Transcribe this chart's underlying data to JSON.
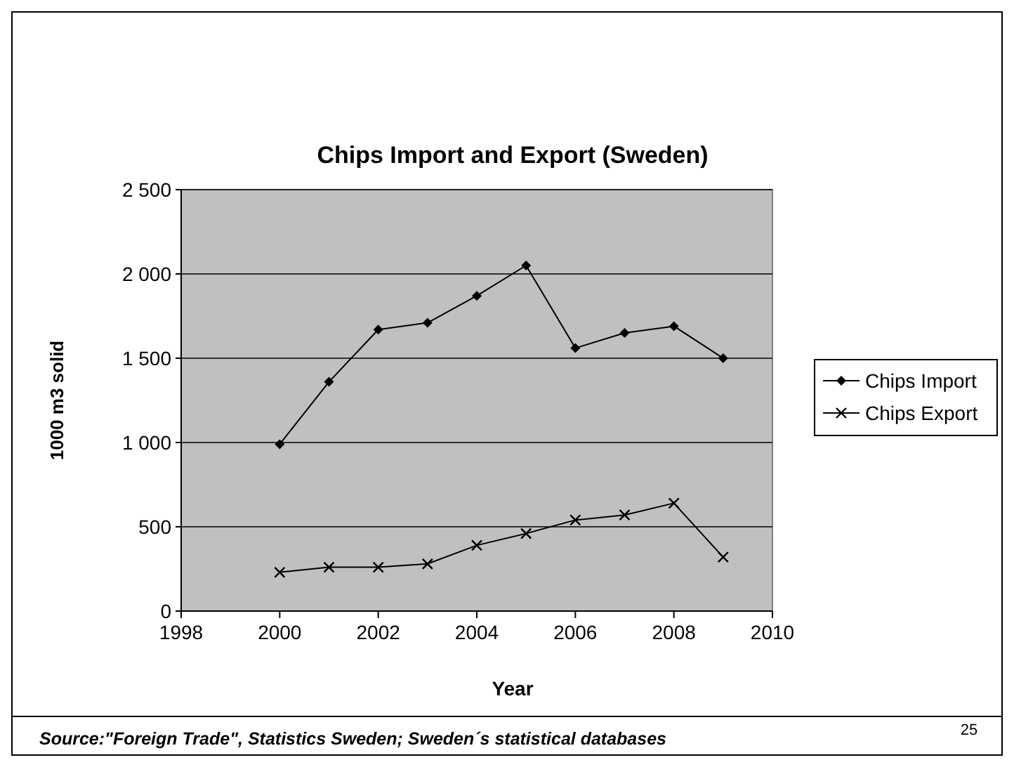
{
  "chart_data": {
    "type": "line",
    "title": "Chips Import and Export (Sweden)",
    "xlabel": "Year",
    "ylabel": "1000 m3 solid",
    "x": [
      2000,
      2001,
      2002,
      2003,
      2004,
      2005,
      2006,
      2007,
      2008,
      2009
    ],
    "series": [
      {
        "name": "Chips Import",
        "color": "#000000",
        "marker": "diamond",
        "values": [
          990,
          1360,
          1670,
          1710,
          1870,
          2050,
          1560,
          1650,
          1690,
          1500
        ]
      },
      {
        "name": "Chips Export",
        "color": "#000000",
        "marker": "cross",
        "values": [
          230,
          260,
          260,
          280,
          390,
          460,
          540,
          570,
          640,
          320
        ]
      }
    ],
    "xlim": [
      1998,
      2010
    ],
    "xticks": [
      1998,
      2000,
      2002,
      2004,
      2006,
      2008,
      2010
    ],
    "ylim": [
      0,
      2500
    ],
    "yticks": [
      {
        "value": 0,
        "label": "0"
      },
      {
        "value": 500,
        "label": "500"
      },
      {
        "value": 1000,
        "label": "1 000"
      },
      {
        "value": 1500,
        "label": "1 500"
      },
      {
        "value": 2000,
        "label": "2 000"
      },
      {
        "value": 2500,
        "label": "2 500"
      }
    ],
    "grid": "y",
    "legend": "right",
    "line_style": "solid",
    "annotations": [
      "Source:\"Foreign Trade\", Statistics Sweden; Sweden´s statistical databases",
      "25"
    ]
  }
}
